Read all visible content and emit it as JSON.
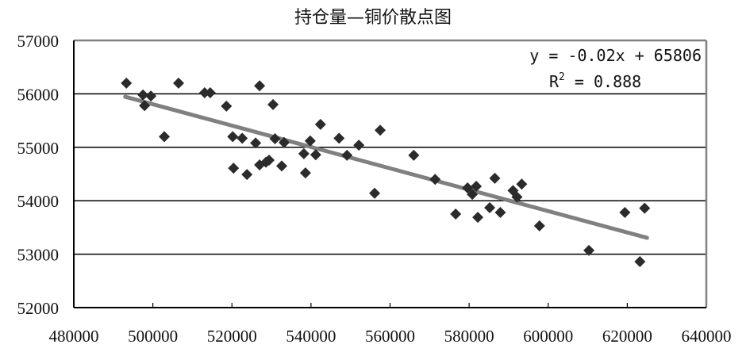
{
  "chart_data": {
    "type": "scatter",
    "title": "持仓量—铜价散点图",
    "xlabel": "",
    "ylabel": "",
    "xlim": [
      480000,
      640000
    ],
    "ylim": [
      52000,
      57000
    ],
    "x_ticks": [
      480000,
      500000,
      520000,
      540000,
      560000,
      580000,
      600000,
      620000,
      640000
    ],
    "y_ticks": [
      52000,
      53000,
      54000,
      55000,
      56000,
      57000
    ],
    "grid": {
      "horizontal": true,
      "vertical": false
    },
    "legend": null,
    "series": [
      {
        "name": "持仓量-铜价",
        "marker": "diamond",
        "color": "#2b2b2b",
        "points": [
          [
            493300,
            56200
          ],
          [
            497500,
            55980
          ],
          [
            497900,
            55780
          ],
          [
            499500,
            55960
          ],
          [
            502900,
            55200
          ],
          [
            506500,
            56200
          ],
          [
            513100,
            56020
          ],
          [
            514500,
            56020
          ],
          [
            518600,
            55770
          ],
          [
            520200,
            55200
          ],
          [
            522600,
            55170
          ],
          [
            520400,
            54610
          ],
          [
            523800,
            54490
          ],
          [
            527000,
            56150
          ],
          [
            526000,
            55080
          ],
          [
            527000,
            54670
          ],
          [
            528600,
            54720
          ],
          [
            529400,
            54760
          ],
          [
            530400,
            55800
          ],
          [
            530900,
            55160
          ],
          [
            532600,
            54650
          ],
          [
            533200,
            55090
          ],
          [
            538200,
            54880
          ],
          [
            538600,
            54520
          ],
          [
            539800,
            55120
          ],
          [
            541200,
            54860
          ],
          [
            542400,
            55430
          ],
          [
            547100,
            55170
          ],
          [
            549100,
            54850
          ],
          [
            552100,
            55040
          ],
          [
            556100,
            54140
          ],
          [
            557500,
            55320
          ],
          [
            566000,
            54850
          ],
          [
            571400,
            54400
          ],
          [
            576600,
            53750
          ],
          [
            579600,
            54240
          ],
          [
            580800,
            54120
          ],
          [
            581800,
            54270
          ],
          [
            582200,
            53690
          ],
          [
            585200,
            53870
          ],
          [
            586500,
            54420
          ],
          [
            587900,
            53780
          ],
          [
            591100,
            54190
          ],
          [
            592100,
            54070
          ],
          [
            593300,
            54310
          ],
          [
            597800,
            53530
          ],
          [
            610300,
            53070
          ],
          [
            619400,
            53780
          ],
          [
            623200,
            52860
          ],
          [
            624400,
            53860
          ]
        ]
      }
    ],
    "trendline": {
      "type": "linear",
      "slope": -0.02,
      "intercept": 65806,
      "x_range": [
        493000,
        625000
      ],
      "color": "#808080",
      "equation": "y = -0.02x + 65806",
      "r_squared_label": "R² = 0.888",
      "r_squared": 0.888
    },
    "annotations": [
      "y = -0.02x + 65806",
      "R² = 0.888"
    ]
  },
  "labels": {
    "title": "持仓量—铜价散点图",
    "equation": "y = -0.02x + 65806",
    "r2_prefix": "R",
    "r2_sup": "2",
    "r2_value": " = 0.888"
  },
  "colors": {
    "marker": "#2b2b2b",
    "trendline": "#808080",
    "gridline": "#000000",
    "frame_top_right": "#808080",
    "frame_left_bottom": "#000000"
  }
}
